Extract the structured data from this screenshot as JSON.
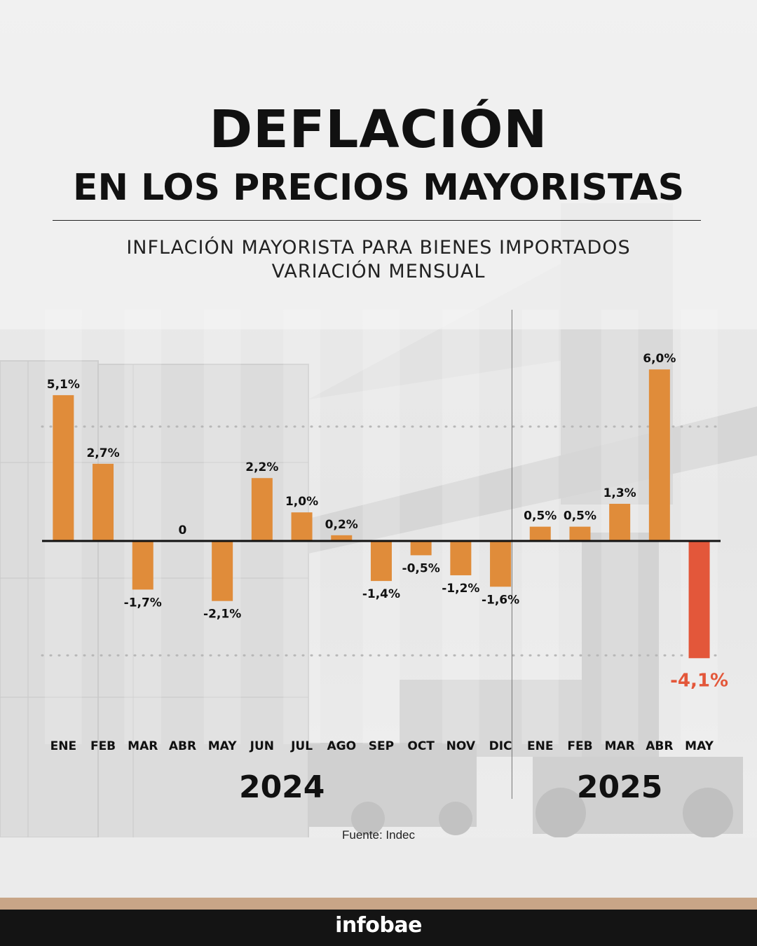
{
  "header": {
    "title": "DEFLACIÓN",
    "subtitle": "EN LOS PRECIOS MAYORISTAS",
    "chart_title_line1": "INFLACIÓN MAYORISTA PARA BIENES IMPORTADOS",
    "chart_title_line2": "VARIACIÓN MENSUAL"
  },
  "chart_data": {
    "type": "bar",
    "title": "INFLACIÓN MAYORISTA PARA BIENES IMPORTADOS",
    "subtitle": "VARIACIÓN MENSUAL",
    "categories": [
      "ENE",
      "FEB",
      "MAR",
      "ABR",
      "MAY",
      "JUN",
      "JUL",
      "AGO",
      "SEP",
      "OCT",
      "NOV",
      "DIC",
      "ENE",
      "FEB",
      "MAR",
      "ABR",
      "MAY"
    ],
    "values": [
      5.1,
      2.7,
      -1.7,
      0,
      -2.1,
      2.2,
      1.0,
      0.2,
      -1.4,
      -0.5,
      -1.2,
      -1.6,
      0.5,
      0.5,
      1.3,
      6.0,
      -4.1
    ],
    "value_labels": [
      "5,1%",
      "2,7%",
      "-1,7%",
      "0",
      "-2,1%",
      "2,2%",
      "1,0%",
      "0,2%",
      "-1,4%",
      "-0,5%",
      "-1,2%",
      "-1,6%",
      "0,5%",
      "0,5%",
      "1,3%",
      "6,0%",
      "-4,1%"
    ],
    "groups": [
      {
        "label": "2024",
        "count": 12
      },
      {
        "label": "2025",
        "count": 5
      }
    ],
    "xlabel": "",
    "ylabel": "",
    "ylim": [
      -4.9,
      7.9
    ],
    "grid": true,
    "colors": {
      "bar": "#e08c3a",
      "highlight": "#e3573a",
      "highlight_label": "#e3573a",
      "axis": "#111111",
      "grid": "#b7b7b7"
    },
    "highlight_index": 16
  },
  "source": "Fuente: Indec",
  "brand": {
    "logo": "infobae",
    "stripe_color": "#c8a587",
    "footer_color": "#141414"
  }
}
